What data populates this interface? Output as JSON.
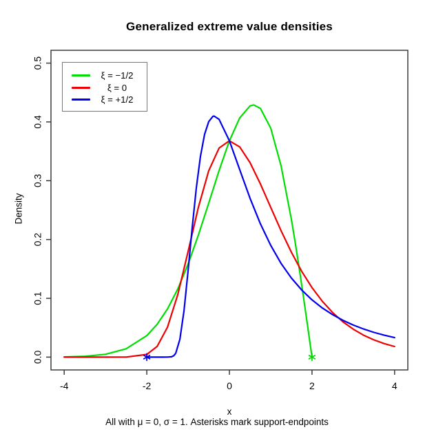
{
  "title": "Generalized extreme value densities",
  "subtitle": "All with μ = 0, σ = 1. Asterisks mark support-endpoints",
  "axes": {
    "x_label": "x",
    "y_label": "Density",
    "x_tick_labels": [
      "-4",
      "-2",
      "0",
      "2",
      "4"
    ],
    "y_tick_labels": [
      "0.0",
      "0.1",
      "0.2",
      "0.3",
      "0.4",
      "0.5"
    ]
  },
  "legend": {
    "entries": [
      {
        "label": "ξ = −1/2",
        "color": "#00dd00"
      },
      {
        "label": "ξ = 0",
        "color": "#ee0000"
      },
      {
        "label": "ξ = +1/2",
        "color": "#0000ee"
      }
    ]
  },
  "colors": {
    "axis": "#3a3a3a",
    "text": "#000000",
    "legend_border": "#767676",
    "background": "#ffffff"
  },
  "chart_data": {
    "type": "line",
    "title": "Generalized extreme value densities",
    "subtitle": "All with μ = 0, σ = 1. Asterisks mark support-endpoints",
    "xlabel": "x",
    "ylabel": "Density",
    "xlim": [
      -4.32,
      4.32
    ],
    "ylim": [
      -0.0218,
      0.5218
    ],
    "x_ticks": [
      -4,
      -2,
      0,
      2,
      4
    ],
    "y_ticks": [
      0,
      0.1,
      0.2,
      0.3,
      0.4,
      0.5
    ],
    "grid": false,
    "legend_position": "top-left",
    "series": [
      {
        "name": "ξ = −1/2",
        "color": "#00dd00",
        "points": [
          [
            -4,
            0.0004
          ],
          [
            -3.5,
            0.0014
          ],
          [
            -3,
            0.0048
          ],
          [
            -2.5,
            0.0142
          ],
          [
            -2,
            0.0366
          ],
          [
            -1.75,
            0.0557
          ],
          [
            -1.5,
            0.0819
          ],
          [
            -1.25,
            0.116
          ],
          [
            -1,
            0.1581
          ],
          [
            -0.75,
            0.2077
          ],
          [
            -0.5,
            0.262
          ],
          [
            -0.25,
            0.3173
          ],
          [
            0,
            0.3679
          ],
          [
            0.25,
            0.4069
          ],
          [
            0.5,
            0.4273
          ],
          [
            0.59,
            0.4289
          ],
          [
            0.75,
            0.4229
          ],
          [
            1,
            0.3894
          ],
          [
            1.25,
            0.3258
          ],
          [
            1.5,
            0.2349
          ],
          [
            1.6,
            0.1922
          ],
          [
            1.7,
            0.1467
          ],
          [
            1.8,
            0.099
          ],
          [
            1.9,
            0.0499
          ],
          [
            2,
            0
          ]
        ]
      },
      {
        "name": "ξ = 0",
        "color": "#ee0000",
        "points": [
          [
            -4,
            0
          ],
          [
            -3,
            0
          ],
          [
            -2.5,
            0.0001
          ],
          [
            -2,
            0.0046
          ],
          [
            -1.75,
            0.0182
          ],
          [
            -1.5,
            0.0508
          ],
          [
            -1.25,
            0.1064
          ],
          [
            -1,
            0.1794
          ],
          [
            -0.75,
            0.2549
          ],
          [
            -0.5,
            0.317
          ],
          [
            -0.25,
            0.3556
          ],
          [
            0,
            0.3679
          ],
          [
            0.25,
            0.3574
          ],
          [
            0.5,
            0.3307
          ],
          [
            0.75,
            0.2945
          ],
          [
            1,
            0.2546
          ],
          [
            1.25,
            0.2152
          ],
          [
            1.5,
            0.1785
          ],
          [
            1.75,
            0.146
          ],
          [
            2,
            0.1182
          ],
          [
            2.25,
            0.0949
          ],
          [
            2.5,
            0.0757
          ],
          [
            2.75,
            0.06
          ],
          [
            3,
            0.0474
          ],
          [
            3.25,
            0.0373
          ],
          [
            3.5,
            0.0293
          ],
          [
            3.75,
            0.023
          ],
          [
            4,
            0.018
          ]
        ]
      },
      {
        "name": "ξ = +1/2",
        "color": "#0000ee",
        "points": [
          [
            -2,
            0
          ],
          [
            -1.6,
            0
          ],
          [
            -1.5,
            0.0001
          ],
          [
            -1.4,
            0.0006
          ],
          [
            -1.35,
            0.0023
          ],
          [
            -1.3,
            0.0066
          ],
          [
            -1.2,
            0.0302
          ],
          [
            -1.1,
            0.0787
          ],
          [
            -1,
            0.1465
          ],
          [
            -0.9,
            0.2201
          ],
          [
            -0.8,
            0.2879
          ],
          [
            -0.7,
            0.3416
          ],
          [
            -0.6,
            0.379
          ],
          [
            -0.5,
            0.4006
          ],
          [
            -0.4,
            0.4094
          ],
          [
            -0.37,
            0.4099
          ],
          [
            -0.25,
            0.4044
          ],
          [
            0,
            0.3679
          ],
          [
            0.25,
            0.3187
          ],
          [
            0.5,
            0.27
          ],
          [
            0.75,
            0.2267
          ],
          [
            1,
            0.19
          ],
          [
            1.25,
            0.1595
          ],
          [
            1.5,
            0.1346
          ],
          [
            1.75,
            0.1142
          ],
          [
            2,
            0.0974
          ],
          [
            2.25,
            0.0835
          ],
          [
            2.5,
            0.0721
          ],
          [
            2.75,
            0.0625
          ],
          [
            3,
            0.0545
          ],
          [
            3.25,
            0.0478
          ],
          [
            3.5,
            0.0421
          ],
          [
            3.75,
            0.0373
          ],
          [
            4,
            0.0331
          ]
        ]
      }
    ],
    "markers": [
      {
        "x": -2,
        "y": 0,
        "symbol": "asterisk",
        "color": "#0000ee",
        "series": "ξ = +1/2"
      },
      {
        "x": 2,
        "y": 0,
        "symbol": "asterisk",
        "color": "#00dd00",
        "series": "ξ = −1/2"
      }
    ]
  }
}
